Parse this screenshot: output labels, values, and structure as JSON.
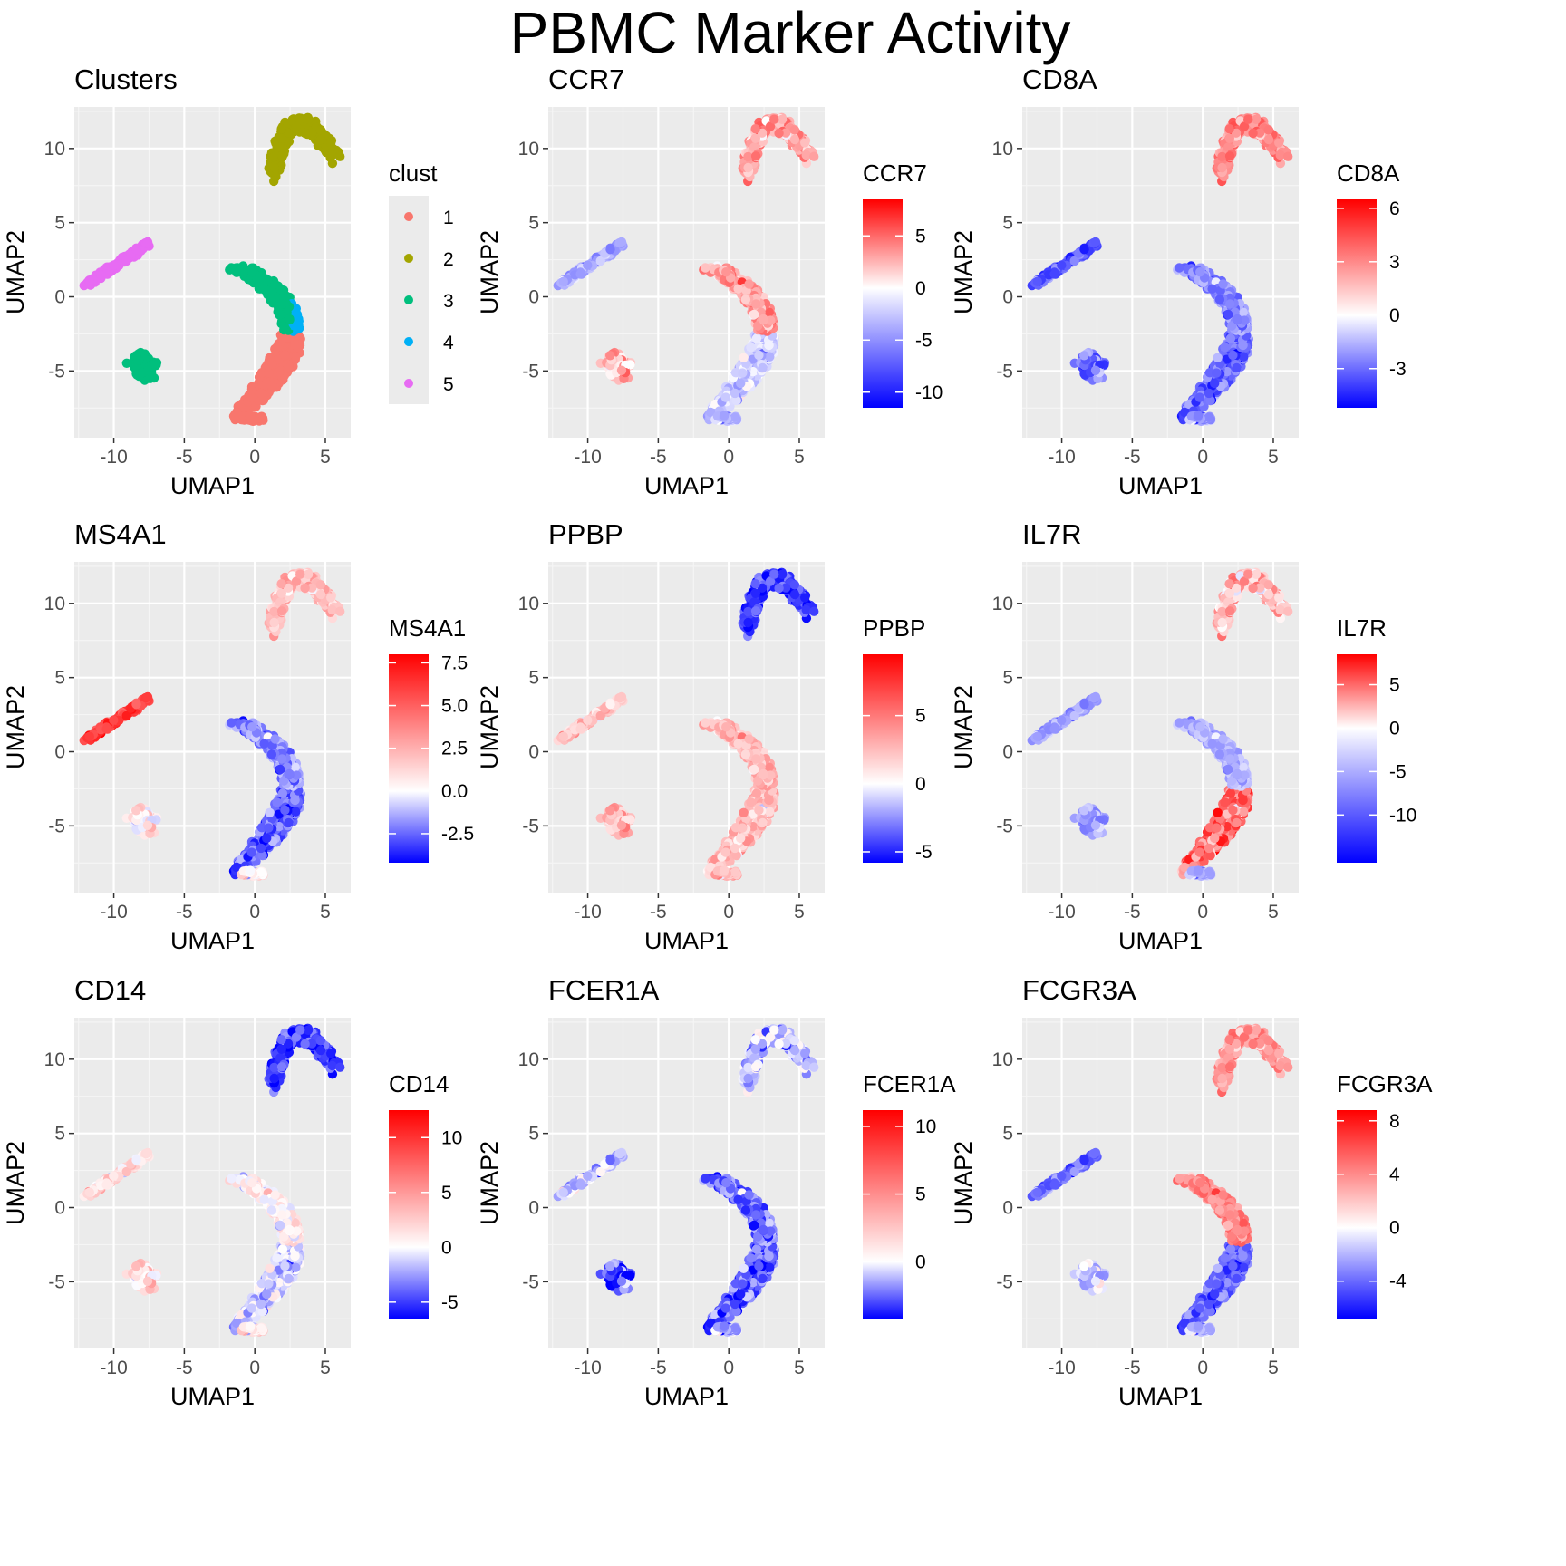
{
  "figure": {
    "title": "PBMC Marker Activity"
  },
  "colors": {
    "panel_bg": "#ebebeb",
    "grid_major": "#ffffff",
    "grid_minor": "#f5f5f5",
    "low": "#0000ff",
    "mid": "#ffffff",
    "high": "#ff0000",
    "clusters": [
      "#f8766d",
      "#a3a500",
      "#00bf7d",
      "#00b0f6",
      "#e76bf3"
    ]
  },
  "chart_data": [
    {
      "type": "scatter",
      "title": "Clusters",
      "xlabel": "UMAP1",
      "ylabel": "UMAP2",
      "xlim": [
        -12.8,
        6.8
      ],
      "ylim": [
        -9.5,
        12.8
      ],
      "xticks": [
        -10,
        -5,
        0,
        5
      ],
      "yticks": [
        -5,
        0,
        5,
        10
      ],
      "grid": true,
      "colorby": "cluster",
      "legend": {
        "title": "clust",
        "position": "right",
        "labels": [
          "1",
          "2",
          "3",
          "4",
          "5"
        ]
      }
    },
    {
      "type": "scatter",
      "title": "CCR7",
      "xlabel": "UMAP1",
      "ylabel": "UMAP2",
      "xlim": [
        -12.8,
        6.8
      ],
      "ylim": [
        -9.5,
        12.8
      ],
      "xticks": [
        -10,
        -5,
        0,
        5
      ],
      "yticks": [
        -5,
        0,
        5,
        10
      ],
      "grid": true,
      "colorby": "gene",
      "colorscale": {
        "title": "CCR7",
        "min": -11.5,
        "max": 8.5,
        "ticks": [
          5,
          0,
          -5,
          -10
        ]
      },
      "levels": {
        "A": -2,
        "Aup": 3,
        "B": -4,
        "C": 2,
        "D": 3,
        "E": -4
      }
    },
    {
      "type": "scatter",
      "title": "CD8A",
      "xlabel": "UMAP1",
      "ylabel": "UMAP2",
      "xlim": [
        -12.8,
        6.8
      ],
      "ylim": [
        -9.5,
        12.8
      ],
      "xticks": [
        -10,
        -5,
        0,
        5
      ],
      "yticks": [
        -5,
        0,
        5,
        10
      ],
      "grid": true,
      "colorby": "gene",
      "colorscale": {
        "title": "CD8A",
        "min": -5.2,
        "max": 6.5,
        "ticks": [
          6,
          3,
          0,
          -3
        ]
      },
      "levels": {
        "A": -3,
        "Aup": -2.5,
        "B": -3.5,
        "C": -3,
        "D": 3,
        "E": -2.5
      }
    },
    {
      "type": "scatter",
      "title": "MS4A1",
      "xlabel": "UMAP1",
      "ylabel": "UMAP2",
      "xlim": [
        -12.8,
        6.8
      ],
      "ylim": [
        -9.5,
        12.8
      ],
      "xticks": [
        -10,
        -5,
        0,
        5
      ],
      "yticks": [
        -5,
        0,
        5,
        10
      ],
      "grid": true,
      "colorby": "gene",
      "colorscale": {
        "title": "MS4A1",
        "min": -4.2,
        "max": 8.0,
        "ticks": [
          "7.5",
          "5.0",
          "2.5",
          "0.0",
          "-2.5"
        ]
      },
      "levels": {
        "A": -2.5,
        "Aup": -2,
        "B": 6,
        "C": 0.5,
        "D": 2,
        "E": 0
      }
    },
    {
      "type": "scatter",
      "title": "PPBP",
      "xlabel": "UMAP1",
      "ylabel": "UMAP2",
      "xlim": [
        -12.8,
        6.8
      ],
      "ylim": [
        -9.5,
        12.8
      ],
      "xticks": [
        -10,
        -5,
        0,
        5
      ],
      "yticks": [
        -5,
        0,
        5,
        10
      ],
      "grid": true,
      "colorby": "gene",
      "colorscale": {
        "title": "PPBP",
        "min": -5.8,
        "max": 9.5,
        "ticks": [
          5,
          0,
          -5
        ]
      },
      "levels": {
        "A": 2.5,
        "Aup": 2.5,
        "B": 2,
        "C": 2.5,
        "D": -4.5,
        "E": 2
      }
    },
    {
      "type": "scatter",
      "title": "IL7R",
      "xlabel": "UMAP1",
      "ylabel": "UMAP2",
      "xlim": [
        -12.8,
        6.8
      ],
      "ylim": [
        -9.5,
        12.8
      ],
      "xticks": [
        -10,
        -5,
        0,
        5
      ],
      "yticks": [
        -5,
        0,
        5,
        10
      ],
      "grid": true,
      "colorby": "gene",
      "colorscale": {
        "title": "IL7R",
        "min": -15.5,
        "max": 8.5,
        "ticks": [
          5,
          0,
          -5,
          -10
        ]
      },
      "levels": {
        "A": 5,
        "Aup": -5,
        "B": -6,
        "C": -6,
        "D": 2,
        "E": -6
      }
    },
    {
      "type": "scatter",
      "title": "CD14",
      "xlabel": "UMAP1",
      "ylabel": "UMAP2",
      "xlim": [
        -12.8,
        6.8
      ],
      "ylim": [
        -9.5,
        12.8
      ],
      "xticks": [
        -10,
        -5,
        0,
        5
      ],
      "yticks": [
        -5,
        0,
        5,
        10
      ],
      "grid": true,
      "colorby": "gene",
      "colorscale": {
        "title": "CD14",
        "min": -6.5,
        "max": 12.5,
        "ticks": [
          10,
          5,
          0,
          -5
        ]
      },
      "levels": {
        "A": -1,
        "Aup": 0.5,
        "B": 1.5,
        "C": 1.5,
        "D": -5,
        "E": 0.5
      }
    },
    {
      "type": "scatter",
      "title": "FCER1A",
      "xlabel": "UMAP1",
      "ylabel": "UMAP2",
      "xlim": [
        -12.8,
        6.8
      ],
      "ylim": [
        -9.5,
        12.8
      ],
      "xticks": [
        -10,
        -5,
        0,
        5
      ],
      "yticks": [
        -5,
        0,
        5,
        10
      ],
      "grid": true,
      "colorby": "gene",
      "colorscale": {
        "title": "FCER1A",
        "min": -4.2,
        "max": 11.2,
        "ticks": [
          10,
          5,
          0
        ]
      },
      "levels": {
        "A": -2.5,
        "Aup": -2.5,
        "B": -1,
        "C": -3,
        "D": -1,
        "E": -2
      }
    },
    {
      "type": "scatter",
      "title": "FCGR3A",
      "xlabel": "UMAP1",
      "ylabel": "UMAP2",
      "xlim": [
        -12.8,
        6.8
      ],
      "ylim": [
        -9.5,
        12.8
      ],
      "xticks": [
        -10,
        -5,
        0,
        5
      ],
      "yticks": [
        -5,
        0,
        5,
        10
      ],
      "grid": true,
      "colorby": "gene",
      "colorscale": {
        "title": "FCGR3A",
        "min": -6.8,
        "max": 8.8,
        "ticks": [
          8,
          4,
          0,
          -4
        ]
      },
      "levels": {
        "A": -4,
        "Aup": 4,
        "B": -4,
        "C": -1.5,
        "D": 3.5,
        "E": -2.5
      }
    }
  ]
}
